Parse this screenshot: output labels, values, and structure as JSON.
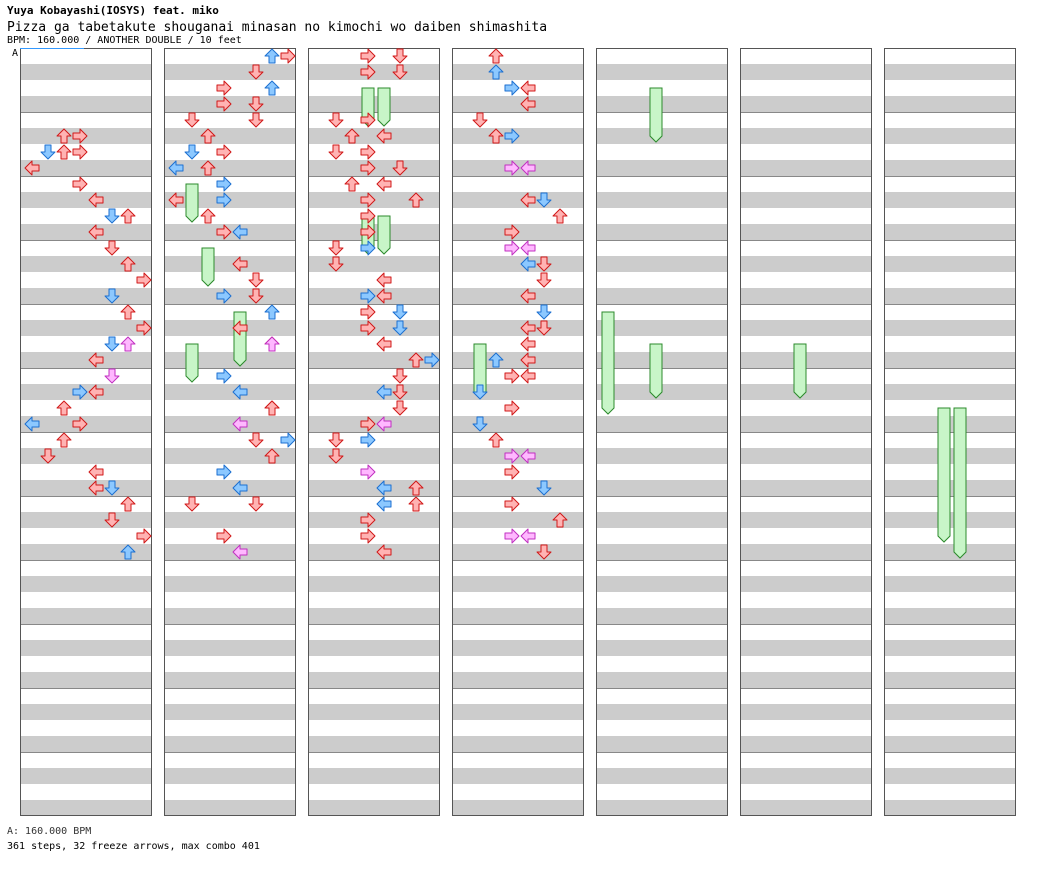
{
  "header": {
    "artist": "Yuya Kobayashi(IOSYS) feat. miko",
    "title": "Pizza ga tabetakute shouganai minasan no kimochi wo daiben shimashita",
    "info": "BPM: 160.000 / ANOTHER DOUBLE / 10 feet"
  },
  "section_marker": "A",
  "footer": {
    "bpm": "A: 160.000 BPM",
    "stats": "361 steps, 32 freeze arrows, max combo 401"
  },
  "colors": {
    "red_fill": "#ffb3b3",
    "red_stroke": "#d01818",
    "blue_fill": "#8cc8ff",
    "blue_stroke": "#1c6fd0",
    "pink_fill": "#ffb8ff",
    "pink_stroke": "#c030c0",
    "freeze_fill": "#c8f5c8",
    "freeze_stroke": "#2c8a2c",
    "stripe": "#cccccc",
    "border": "#555555"
  },
  "chart_data": {
    "type": "step-chart",
    "panels": 7,
    "measures_per_panel": 12,
    "lanes": 8,
    "freeze_count_label": 32,
    "steps": [
      [
        0,
        5,
        3,
        "red"
      ],
      [
        0,
        5,
        2,
        "red"
      ],
      [
        0,
        6,
        2,
        "red"
      ],
      [
        0,
        6,
        1,
        "blue"
      ],
      [
        0,
        6,
        3,
        "red"
      ],
      [
        0,
        7,
        0,
        "red"
      ],
      [
        0,
        8,
        3,
        "red"
      ],
      [
        0,
        9,
        4,
        "red"
      ],
      [
        0,
        10,
        6,
        "red"
      ],
      [
        0,
        10,
        5,
        "blue"
      ],
      [
        0,
        11,
        4,
        "red"
      ],
      [
        0,
        12,
        5,
        "red"
      ],
      [
        0,
        13,
        6,
        "red"
      ],
      [
        0,
        14,
        7,
        "red"
      ],
      [
        0,
        15,
        5,
        "blue"
      ],
      [
        0,
        16,
        6,
        "red"
      ],
      [
        0,
        17,
        7,
        "red"
      ],
      [
        0,
        18,
        5,
        "blue"
      ],
      [
        0,
        18,
        6,
        "pink"
      ],
      [
        0,
        19,
        4,
        "red"
      ],
      [
        0,
        20,
        5,
        "pink"
      ],
      [
        0,
        21,
        3,
        "blue"
      ],
      [
        0,
        21,
        4,
        "red"
      ],
      [
        0,
        22,
        2,
        "red"
      ],
      [
        0,
        23,
        0,
        "blue"
      ],
      [
        0,
        23,
        3,
        "red"
      ],
      [
        0,
        24,
        2,
        "red"
      ],
      [
        0,
        25,
        1,
        "red"
      ],
      [
        0,
        26,
        4,
        "red"
      ],
      [
        0,
        27,
        4,
        "red"
      ],
      [
        0,
        27,
        5,
        "blue"
      ],
      [
        0,
        28,
        6,
        "red"
      ],
      [
        0,
        29,
        5,
        "red"
      ],
      [
        0,
        30,
        7,
        "red"
      ],
      [
        0,
        31,
        6,
        "blue"
      ],
      [
        0,
        31,
        8,
        "red"
      ],
      [
        1,
        0,
        6,
        "blue"
      ],
      [
        1,
        0,
        7,
        "red"
      ],
      [
        1,
        1,
        5,
        "red"
      ],
      [
        1,
        2,
        3,
        "red"
      ],
      [
        1,
        2,
        6,
        "blue"
      ],
      [
        1,
        3,
        3,
        "red"
      ],
      [
        1,
        3,
        5,
        "red"
      ],
      [
        1,
        4,
        1,
        "red"
      ],
      [
        1,
        4,
        5,
        "red"
      ],
      [
        1,
        5,
        2,
        "red"
      ],
      [
        1,
        6,
        1,
        "blue"
      ],
      [
        1,
        6,
        3,
        "red"
      ],
      [
        1,
        7,
        0,
        "blue"
      ],
      [
        1,
        7,
        2,
        "red"
      ],
      [
        1,
        8,
        3,
        "blue"
      ],
      [
        1,
        9,
        0,
        "red"
      ],
      [
        1,
        9,
        3,
        "blue"
      ],
      [
        1,
        10,
        2,
        "red"
      ],
      [
        1,
        11,
        3,
        "red"
      ],
      [
        1,
        11,
        4,
        "blue"
      ],
      [
        1,
        13,
        4,
        "red"
      ],
      [
        1,
        14,
        5,
        "red"
      ],
      [
        1,
        15,
        3,
        "blue"
      ],
      [
        1,
        15,
        5,
        "red"
      ],
      [
        1,
        16,
        6,
        "blue"
      ],
      [
        1,
        17,
        4,
        "red"
      ],
      [
        1,
        18,
        6,
        "red"
      ],
      [
        1,
        18,
        6,
        "pink"
      ],
      [
        1,
        20,
        3,
        "blue"
      ],
      [
        1,
        21,
        4,
        "blue"
      ],
      [
        1,
        22,
        6,
        "red"
      ],
      [
        1,
        22,
        6,
        "red"
      ],
      [
        1,
        23,
        4,
        "pink"
      ],
      [
        1,
        24,
        5,
        "red"
      ],
      [
        1,
        24,
        7,
        "blue"
      ],
      [
        1,
        25,
        6,
        "red"
      ],
      [
        1,
        26,
        3,
        "blue"
      ],
      [
        1,
        27,
        4,
        "blue"
      ],
      [
        1,
        28,
        1,
        "red"
      ],
      [
        1,
        28,
        5,
        "red"
      ],
      [
        1,
        30,
        3,
        "red"
      ],
      [
        1,
        31,
        4,
        "pink"
      ],
      [
        2,
        0,
        3,
        "red"
      ],
      [
        2,
        0,
        5,
        "red"
      ],
      [
        2,
        1,
        3,
        "red"
      ],
      [
        2,
        1,
        5,
        "red"
      ],
      [
        2,
        4,
        1,
        "red"
      ],
      [
        2,
        4,
        3,
        "red"
      ],
      [
        2,
        5,
        2,
        "red"
      ],
      [
        2,
        5,
        4,
        "red"
      ],
      [
        2,
        6,
        1,
        "red"
      ],
      [
        2,
        6,
        3,
        "red"
      ],
      [
        2,
        7,
        3,
        "red"
      ],
      [
        2,
        7,
        5,
        "red"
      ],
      [
        2,
        8,
        2,
        "red"
      ],
      [
        2,
        8,
        4,
        "red"
      ],
      [
        2,
        9,
        3,
        "red"
      ],
      [
        2,
        9,
        6,
        "red"
      ],
      [
        2,
        10,
        3,
        "red"
      ],
      [
        2,
        11,
        3,
        "red"
      ],
      [
        2,
        12,
        1,
        "red"
      ],
      [
        2,
        12,
        3,
        "blue"
      ],
      [
        2,
        13,
        1,
        "red"
      ],
      [
        2,
        14,
        4,
        "red"
      ],
      [
        2,
        15,
        3,
        "blue"
      ],
      [
        2,
        15,
        4,
        "red"
      ],
      [
        2,
        16,
        3,
        "red"
      ],
      [
        2,
        16,
        5,
        "blue"
      ],
      [
        2,
        17,
        3,
        "red"
      ],
      [
        2,
        17,
        5,
        "blue"
      ],
      [
        2,
        18,
        4,
        "red"
      ],
      [
        2,
        19,
        6,
        "red"
      ],
      [
        2,
        19,
        7,
        "blue"
      ],
      [
        2,
        20,
        5,
        "red"
      ],
      [
        2,
        21,
        4,
        "blue"
      ],
      [
        2,
        21,
        5,
        "red"
      ],
      [
        2,
        22,
        5,
        "red"
      ],
      [
        2,
        23,
        3,
        "red"
      ],
      [
        2,
        23,
        4,
        "pink"
      ],
      [
        2,
        24,
        1,
        "red"
      ],
      [
        2,
        24,
        3,
        "blue"
      ],
      [
        2,
        25,
        1,
        "red"
      ],
      [
        2,
        26,
        3,
        "pink"
      ],
      [
        2,
        27,
        4,
        "blue"
      ],
      [
        2,
        27,
        6,
        "red"
      ],
      [
        2,
        28,
        4,
        "blue"
      ],
      [
        2,
        28,
        6,
        "red"
      ],
      [
        2,
        29,
        3,
        "red"
      ],
      [
        2,
        30,
        3,
        "red"
      ],
      [
        2,
        31,
        4,
        "red"
      ],
      [
        3,
        0,
        2,
        "red"
      ],
      [
        3,
        1,
        2,
        "blue"
      ],
      [
        3,
        2,
        3,
        "blue"
      ],
      [
        3,
        2,
        4,
        "red"
      ],
      [
        3,
        3,
        4,
        "red"
      ],
      [
        3,
        4,
        1,
        "red"
      ],
      [
        3,
        5,
        2,
        "red"
      ],
      [
        3,
        5,
        3,
        "blue"
      ],
      [
        3,
        7,
        3,
        "pink"
      ],
      [
        3,
        7,
        4,
        "pink"
      ],
      [
        3,
        9,
        4,
        "red"
      ],
      [
        3,
        9,
        5,
        "blue"
      ],
      [
        3,
        10,
        6,
        "red"
      ],
      [
        3,
        11,
        3,
        "red"
      ],
      [
        3,
        12,
        4,
        "pink"
      ],
      [
        3,
        12,
        3,
        "pink"
      ],
      [
        3,
        13,
        4,
        "blue"
      ],
      [
        3,
        13,
        5,
        "red"
      ],
      [
        3,
        14,
        5,
        "red"
      ],
      [
        3,
        15,
        4,
        "red"
      ],
      [
        3,
        16,
        5,
        "blue"
      ],
      [
        3,
        17,
        5,
        "red"
      ],
      [
        3,
        17,
        4,
        "red"
      ],
      [
        3,
        18,
        4,
        "red"
      ],
      [
        3,
        19,
        2,
        "blue"
      ],
      [
        3,
        19,
        4,
        "red"
      ],
      [
        3,
        20,
        4,
        "red"
      ],
      [
        3,
        20,
        3,
        "red"
      ],
      [
        3,
        21,
        1,
        "blue"
      ],
      [
        3,
        22,
        3,
        "red"
      ],
      [
        3,
        23,
        1,
        "blue"
      ],
      [
        3,
        24,
        2,
        "red"
      ],
      [
        3,
        25,
        3,
        "pink"
      ],
      [
        3,
        25,
        4,
        "pink"
      ],
      [
        3,
        26,
        3,
        "red"
      ],
      [
        3,
        27,
        5,
        "blue"
      ],
      [
        3,
        28,
        3,
        "red"
      ],
      [
        3,
        29,
        6,
        "red"
      ],
      [
        3,
        30,
        3,
        "pink"
      ],
      [
        3,
        30,
        4,
        "pink"
      ],
      [
        3,
        31,
        5,
        "red"
      ]
    ],
    "freezes": [
      [
        1,
        8,
        1,
        2
      ],
      [
        1,
        12,
        2,
        2
      ],
      [
        1,
        16,
        4,
        3
      ],
      [
        1,
        18,
        1,
        2
      ],
      [
        2,
        2,
        3,
        2
      ],
      [
        2,
        2,
        4,
        2
      ],
      [
        2,
        10,
        3,
        2
      ],
      [
        2,
        10,
        4,
        2
      ],
      [
        3,
        18,
        1,
        3
      ],
      [
        4,
        2,
        3,
        3
      ],
      [
        4,
        16,
        0,
        6
      ],
      [
        4,
        18,
        3,
        3
      ],
      [
        5,
        18,
        3,
        3
      ],
      [
        6,
        22,
        3,
        8
      ],
      [
        6,
        22,
        4,
        9
      ]
    ]
  }
}
